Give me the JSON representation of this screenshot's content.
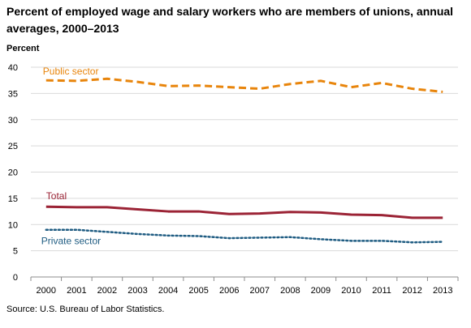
{
  "chart_data": {
    "type": "line",
    "title": "Percent of employed wage and salary workers who are members of unions, annual averages, 2000–2013",
    "ylabel": "Percent",
    "xlabel": "",
    "ylim": [
      0,
      40
    ],
    "yticks": [
      0,
      5,
      10,
      15,
      20,
      25,
      30,
      35,
      40
    ],
    "grid": true,
    "legend": "inline labels",
    "categories": [
      "2000",
      "2001",
      "2002",
      "2003",
      "2004",
      "2005",
      "2006",
      "2007",
      "2008",
      "2009",
      "2010",
      "2011",
      "2012",
      "2013"
    ],
    "series": [
      {
        "name": "Public sector",
        "color": "#E8850C",
        "style": "dashed",
        "values": [
          37.5,
          37.4,
          37.8,
          37.2,
          36.4,
          36.5,
          36.2,
          35.9,
          36.8,
          37.4,
          36.2,
          37.0,
          35.9,
          35.3
        ]
      },
      {
        "name": "Total",
        "color": "#9B2335",
        "style": "solid",
        "values": [
          13.4,
          13.3,
          13.3,
          12.9,
          12.5,
          12.5,
          12.0,
          12.1,
          12.4,
          12.3,
          11.9,
          11.8,
          11.3,
          11.3
        ]
      },
      {
        "name": "Private sector",
        "color": "#1F5C82",
        "style": "dotted",
        "values": [
          9.0,
          9.0,
          8.6,
          8.2,
          7.9,
          7.8,
          7.4,
          7.5,
          7.6,
          7.2,
          6.9,
          6.9,
          6.6,
          6.7
        ]
      }
    ]
  },
  "source": "Source: U.S. Bureau of Labor Statistics."
}
